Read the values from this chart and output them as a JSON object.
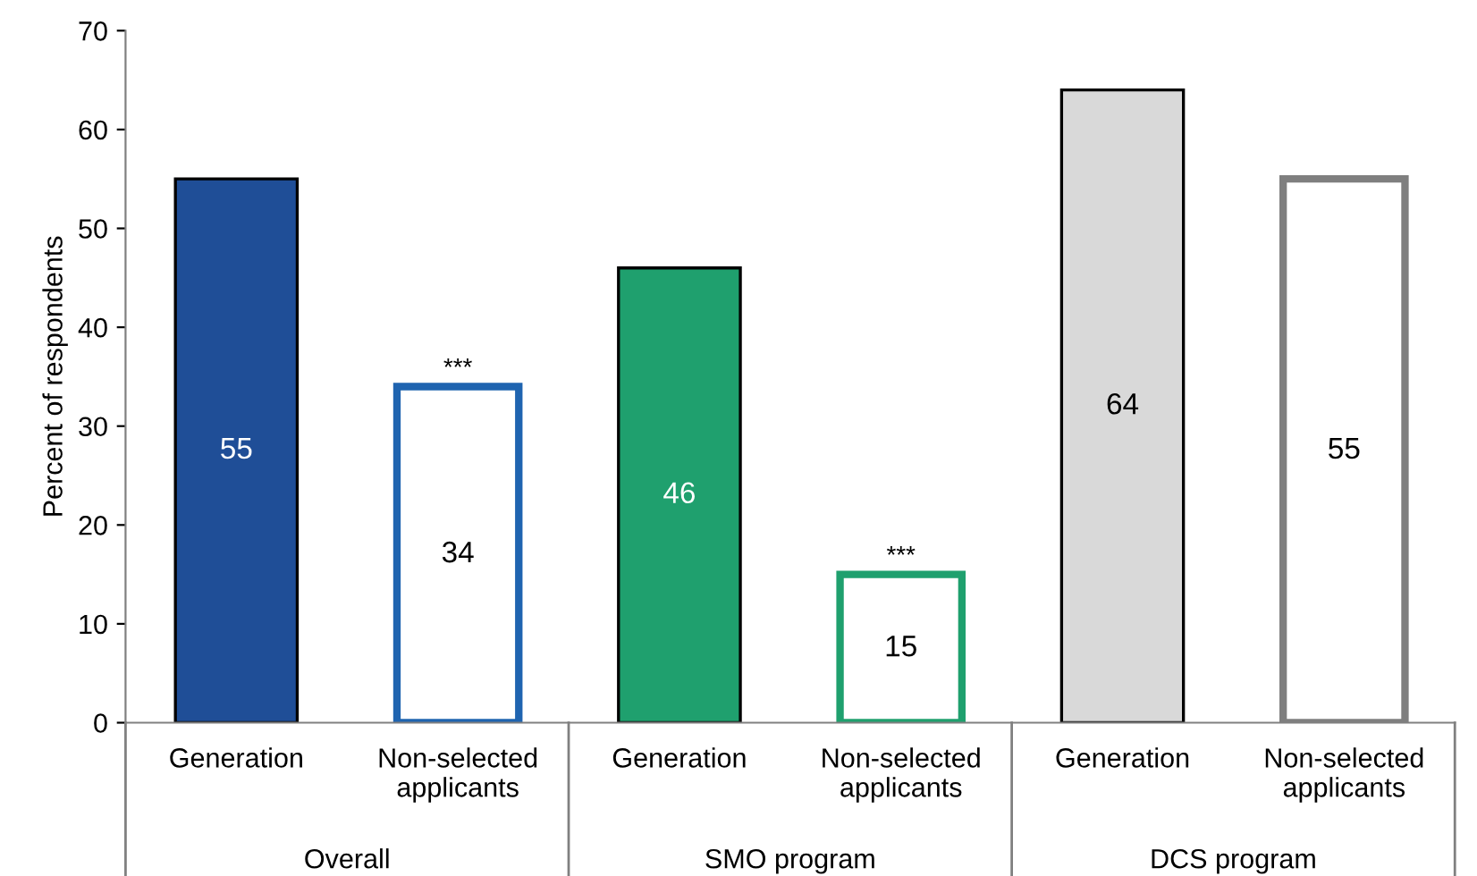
{
  "chart_data": {
    "type": "bar",
    "ylabel": "Percent of respondents",
    "categories": [
      "Generation",
      "Non-selected\napplicants",
      "Generation",
      "Non-selected\napplicants",
      "Generation",
      "Non-selected\napplicants"
    ],
    "values": [
      55,
      34,
      46,
      15,
      64,
      55
    ],
    "colors": [
      "#1f4e97",
      "#1f64b0",
      "#1fa06e",
      "#1fa06e",
      "#d9d9d9",
      "#7f7f7f"
    ],
    "data_labels": true,
    "ylim": [
      0,
      70
    ],
    "yticks": [
      0,
      10,
      20,
      30,
      40,
      50,
      60,
      70
    ],
    "grid": false,
    "annotations": [
      "***",
      "***",
      "Overall",
      "SMO program",
      "DCS program"
    ]
  }
}
